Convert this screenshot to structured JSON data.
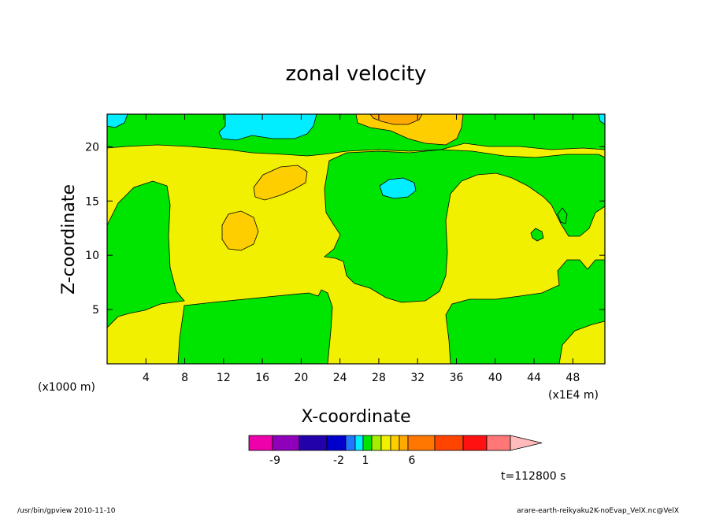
{
  "chart_data": {
    "type": "heatmap",
    "title": "zonal velocity",
    "xlabel": "X-coordinate",
    "ylabel": "Z-coordinate",
    "x_unit_left": "(x1000 m)",
    "x_unit_right": "(x1E4 m)",
    "time_label": "t=112800 s",
    "xlim": [
      0,
      51.3
    ],
    "ylim": [
      0,
      23
    ],
    "x_ticks": [
      4,
      8,
      12,
      16,
      20,
      24,
      28,
      32,
      36,
      40,
      44,
      48
    ],
    "y_ticks": [
      5,
      10,
      15,
      20
    ],
    "colorbar": {
      "colors": [
        "#ee00aa",
        "#8f00bb",
        "#2200aa",
        "#0000cc",
        "#2277ff",
        "#00eeff",
        "#00e500",
        "#a6ee00",
        "#f0f000",
        "#fece00",
        "#ffaa00",
        "#ff7700",
        "#ff4400",
        "#ff1111",
        "#ff7777",
        "#ffbbbb"
      ],
      "widths": [
        30,
        34,
        35,
        24,
        12,
        10,
        11,
        12,
        12,
        11,
        11,
        34,
        36,
        30,
        30,
        0
      ],
      "tick_labels": [
        "-9",
        "-2",
        "1",
        "6"
      ]
    },
    "dominant_levels": [
      "green (~0)",
      "yellow (~1)",
      "gold (~2)",
      "cyan (~-1)"
    ]
  },
  "footer": {
    "left": "/usr/bin/gpview   2010-11-10",
    "right": "arare-earth-reikyaku2K-noEvap_VelX.nc@VelX"
  }
}
